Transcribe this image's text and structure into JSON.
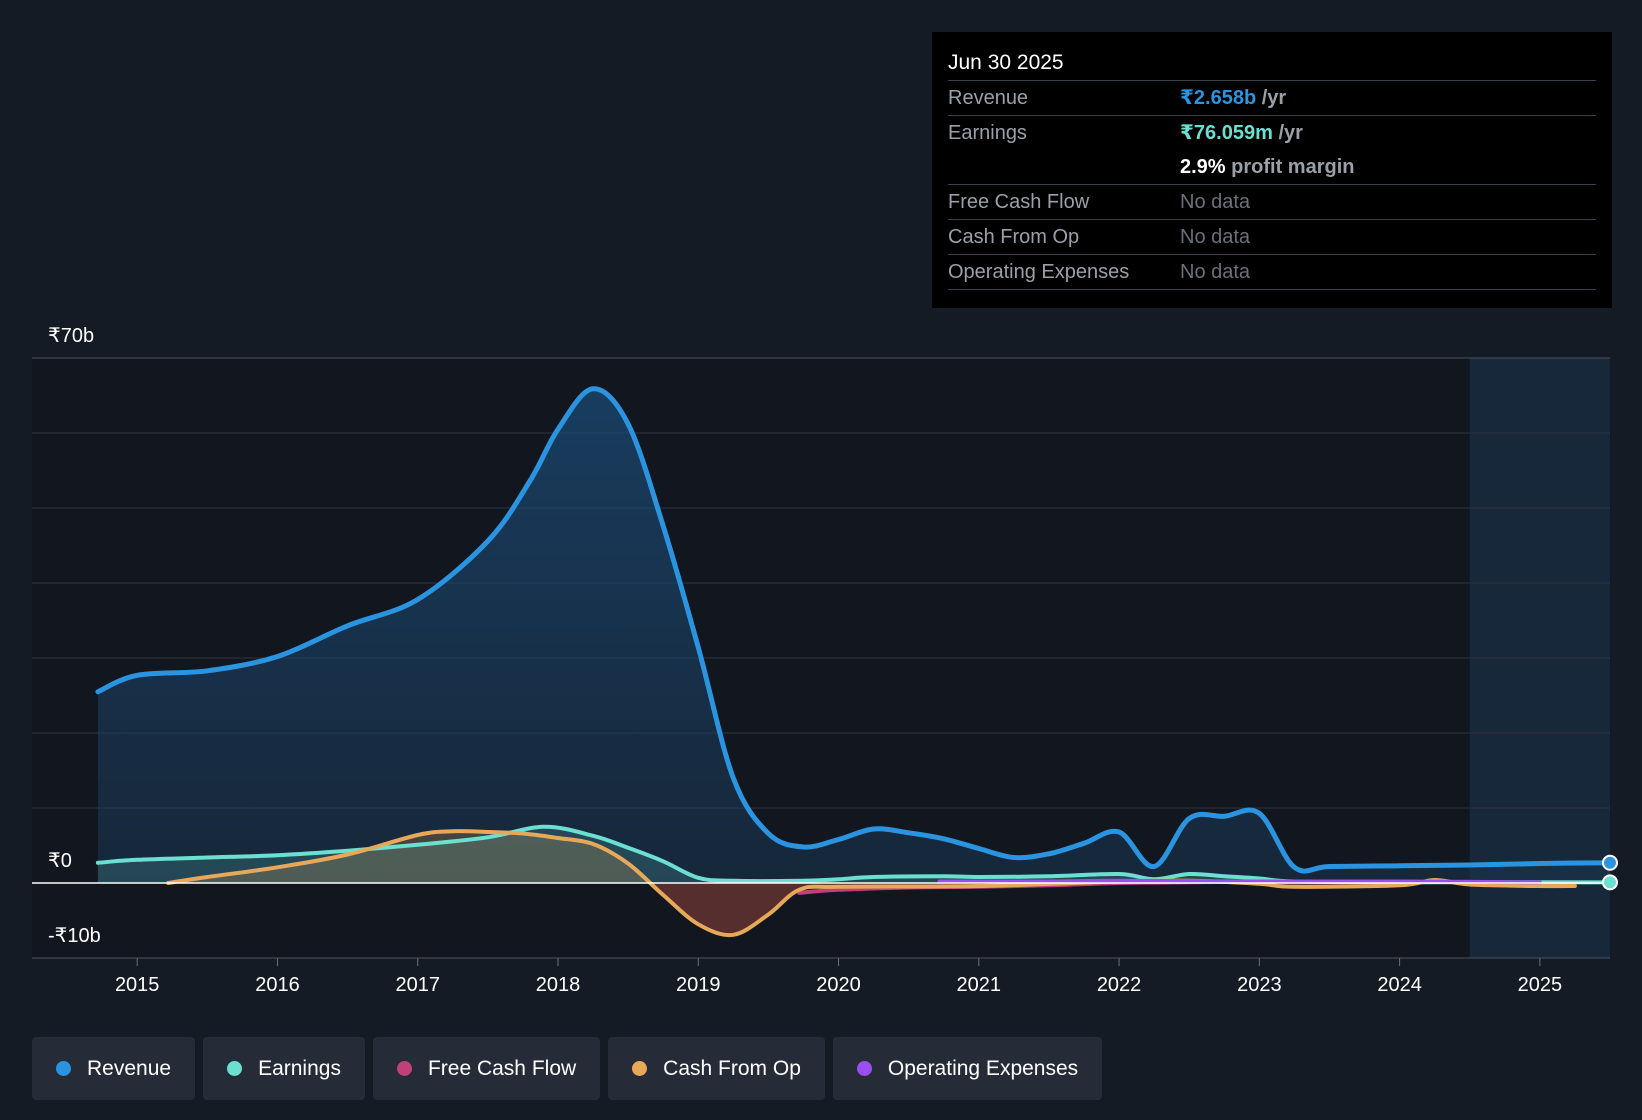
{
  "tooltip": {
    "date": "Jun 30 2025",
    "revenue_label": "Revenue",
    "revenue_value": "₹2.658b",
    "revenue_unit": "/yr",
    "earnings_label": "Earnings",
    "earnings_value": "₹76.059m",
    "earnings_unit": "/yr",
    "margin_value": "2.9%",
    "margin_label": "profit margin",
    "fcf_label": "Free Cash Flow",
    "fcf_value": "No data",
    "cfo_label": "Cash From Op",
    "cfo_value": "No data",
    "opex_label": "Operating Expenses",
    "opex_value": "No data"
  },
  "legend": {
    "revenue": "Revenue",
    "earnings": "Earnings",
    "fcf": "Free Cash Flow",
    "cfo": "Cash From Op",
    "opex": "Operating Expenses"
  },
  "colors": {
    "revenue": "#2b94e0",
    "earnings": "#6ce0d0",
    "fcf": "#c0407a",
    "cfo": "#e8a85a",
    "opex": "#9b4ff0"
  },
  "chart_data": {
    "type": "area",
    "y_tick_labels": [
      "₹70b",
      "₹0",
      "-₹10b"
    ],
    "ylim": [
      -10,
      70
    ],
    "xlim": [
      2014.25,
      2025.5
    ],
    "x_tick_labels": [
      "2015",
      "2016",
      "2017",
      "2018",
      "2019",
      "2020",
      "2021",
      "2022",
      "2023",
      "2024",
      "2025"
    ],
    "x_ticks": [
      2015,
      2016,
      2017,
      2018,
      2019,
      2020,
      2021,
      2022,
      2023,
      2024,
      2025
    ],
    "forecast_start": 2024.5,
    "series": [
      {
        "name": "Revenue",
        "key": "revenue",
        "fill": true,
        "points": [
          [
            2014.72,
            25.5
          ],
          [
            2015.0,
            27.7
          ],
          [
            2015.5,
            28.3
          ],
          [
            2016.0,
            30.2
          ],
          [
            2016.5,
            34.3
          ],
          [
            2017.0,
            37.8
          ],
          [
            2017.5,
            45.6
          ],
          [
            2017.8,
            53.6
          ],
          [
            2018.0,
            60.5
          ],
          [
            2018.25,
            65.9
          ],
          [
            2018.5,
            61.2
          ],
          [
            2018.75,
            47.6
          ],
          [
            2019.0,
            31.4
          ],
          [
            2019.25,
            14.0
          ],
          [
            2019.5,
            6.6
          ],
          [
            2019.75,
            4.8
          ],
          [
            2020.0,
            5.8
          ],
          [
            2020.25,
            7.2
          ],
          [
            2020.5,
            6.7
          ],
          [
            2020.75,
            5.9
          ],
          [
            2021.0,
            4.6
          ],
          [
            2021.25,
            3.4
          ],
          [
            2021.5,
            3.9
          ],
          [
            2021.75,
            5.3
          ],
          [
            2022.0,
            6.8
          ],
          [
            2022.25,
            2.2
          ],
          [
            2022.5,
            8.6
          ],
          [
            2022.75,
            8.9
          ],
          [
            2023.0,
            9.3
          ],
          [
            2023.25,
            2.1
          ],
          [
            2023.5,
            2.2
          ],
          [
            2024.0,
            2.3
          ],
          [
            2024.5,
            2.4
          ],
          [
            2025.0,
            2.6
          ],
          [
            2025.5,
            2.7
          ]
        ]
      },
      {
        "name": "Earnings",
        "key": "earnings",
        "fill": true,
        "points": [
          [
            2014.72,
            2.7
          ],
          [
            2015.0,
            3.1
          ],
          [
            2015.5,
            3.4
          ],
          [
            2016.0,
            3.7
          ],
          [
            2016.5,
            4.3
          ],
          [
            2017.0,
            5.1
          ],
          [
            2017.5,
            6.1
          ],
          [
            2017.9,
            7.5
          ],
          [
            2018.25,
            6.3
          ],
          [
            2018.5,
            4.7
          ],
          [
            2018.75,
            2.9
          ],
          [
            2019.0,
            0.7
          ],
          [
            2019.25,
            0.3
          ],
          [
            2019.75,
            0.3
          ],
          [
            2020.0,
            0.5
          ],
          [
            2020.25,
            0.8
          ],
          [
            2020.75,
            0.9
          ],
          [
            2021.0,
            0.8
          ],
          [
            2021.5,
            0.9
          ],
          [
            2022.0,
            1.2
          ],
          [
            2022.25,
            0.5
          ],
          [
            2022.5,
            1.2
          ],
          [
            2022.75,
            0.9
          ],
          [
            2023.0,
            0.6
          ],
          [
            2023.25,
            0.2
          ],
          [
            2024.0,
            0.1
          ],
          [
            2025.0,
            0.1
          ],
          [
            2025.5,
            0.08
          ]
        ]
      },
      {
        "name": "Free Cash Flow",
        "key": "fcf",
        "fill": false,
        "points": [
          [
            2019.72,
            -1.3
          ],
          [
            2020.0,
            -0.9
          ],
          [
            2020.5,
            -0.6
          ],
          [
            2021.0,
            -0.5
          ],
          [
            2021.5,
            -0.3
          ],
          [
            2022.0,
            0.0
          ],
          [
            2022.5,
            0.1
          ],
          [
            2023.0,
            0.2
          ]
        ]
      },
      {
        "name": "Cash From Op",
        "key": "cfo",
        "fill": true,
        "points": [
          [
            2015.22,
            0.0
          ],
          [
            2015.5,
            0.8
          ],
          [
            2016.0,
            2.1
          ],
          [
            2016.5,
            3.8
          ],
          [
            2017.0,
            6.4
          ],
          [
            2017.25,
            6.9
          ],
          [
            2017.5,
            6.8
          ],
          [
            2017.75,
            6.6
          ],
          [
            2018.0,
            6.0
          ],
          [
            2018.25,
            5.2
          ],
          [
            2018.5,
            2.6
          ],
          [
            2018.75,
            -1.6
          ],
          [
            2019.0,
            -5.5
          ],
          [
            2019.25,
            -6.9
          ],
          [
            2019.5,
            -4.2
          ],
          [
            2019.72,
            -0.9
          ],
          [
            2020.0,
            -0.5
          ],
          [
            2021.0,
            -0.4
          ],
          [
            2022.0,
            0.2
          ],
          [
            2022.5,
            0.3
          ],
          [
            2023.0,
            -0.1
          ],
          [
            2023.25,
            -0.5
          ],
          [
            2024.0,
            -0.3
          ],
          [
            2024.25,
            0.4
          ],
          [
            2024.5,
            -0.2
          ],
          [
            2025.0,
            -0.4
          ],
          [
            2025.25,
            -0.4
          ]
        ]
      },
      {
        "name": "Operating Expenses",
        "key": "opex",
        "fill": false,
        "points": [
          [
            2020.72,
            0.2
          ],
          [
            2021.5,
            0.2
          ],
          [
            2022.0,
            0.3
          ],
          [
            2023.0,
            0.2
          ],
          [
            2024.0,
            0.2
          ],
          [
            2025.0,
            0.1
          ]
        ]
      }
    ]
  }
}
